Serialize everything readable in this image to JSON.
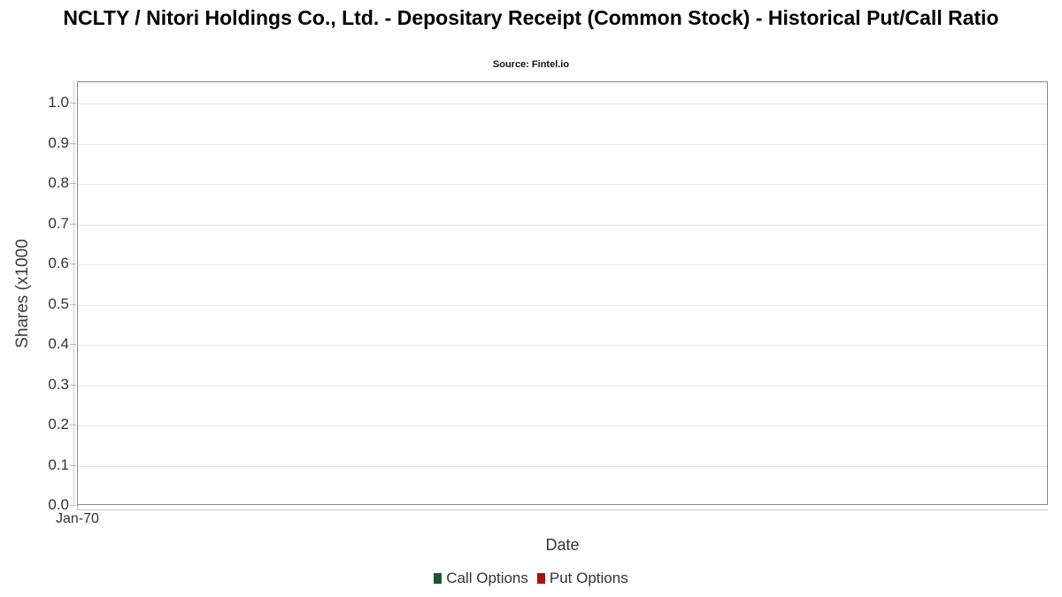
{
  "chart_data": {
    "type": "line",
    "title": "NCLTY / Nitori Holdings Co., Ltd. - Depositary Receipt (Common Stock) - Historical Put/Call Ratio",
    "subtitle": "Source: Fintel.io",
    "xlabel": "Date",
    "ylabel": "Shares (x1000",
    "x_ticks": [
      "Jan-70"
    ],
    "y_ticks": [
      "0.0",
      "0.1",
      "0.2",
      "0.3",
      "0.4",
      "0.5",
      "0.6",
      "0.7",
      "0.8",
      "0.9",
      "1.0"
    ],
    "ylim": [
      0,
      1.05
    ],
    "grid": true,
    "legend_position": "bottom",
    "series": [
      {
        "name": "Call Options",
        "color": "#1d5632",
        "x": [],
        "values": []
      },
      {
        "name": "Put Options",
        "color": "#aa1111",
        "x": [],
        "values": []
      }
    ],
    "note": "empty plot - no data points rendered"
  }
}
